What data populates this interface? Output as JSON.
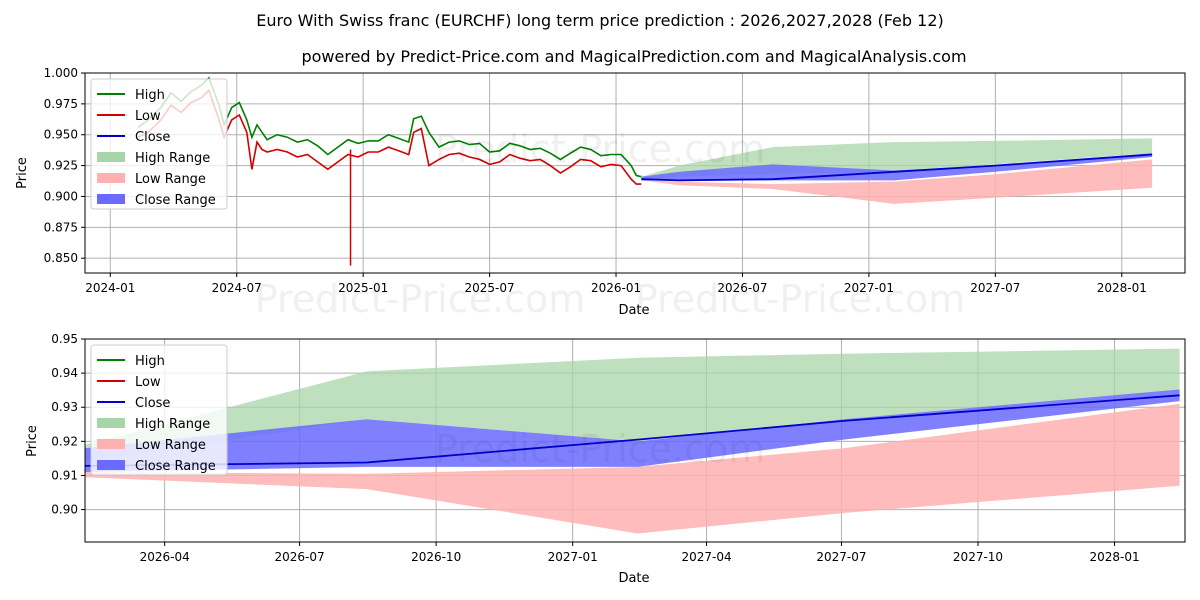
{
  "page": {
    "title": "Euro With Swiss franc (EURCHF) long term price prediction : 2026,2027,2028 (Feb 12)",
    "subtitle": "powered by Predict-Price.com and MagicalPrediction.com and MagicalAnalysis.com",
    "watermark": "Predict-Price.com"
  },
  "colors": {
    "high": "#008000",
    "low": "#d40000",
    "close": "#0000cc",
    "high_range": "#a8d5a8",
    "low_range": "#ffb0b0",
    "close_range": "#6a6aff",
    "grid": "#b0b0b0"
  },
  "chart_data": [
    {
      "type": "line",
      "title": "Euro With Swiss franc (EURCHF) long term price prediction : 2026,2027,2028 (Feb 12)",
      "xlabel": "Date",
      "ylabel": "Price",
      "xlim": [
        2023.9,
        2028.25
      ],
      "ylim": [
        0.838,
        1.0
      ],
      "xticks": [
        {
          "v": 2024.0,
          "label": "2024-01"
        },
        {
          "v": 2024.5,
          "label": "2024-07"
        },
        {
          "v": 2025.0,
          "label": "2025-01"
        },
        {
          "v": 2025.5,
          "label": "2025-07"
        },
        {
          "v": 2026.0,
          "label": "2026-01"
        },
        {
          "v": 2026.5,
          "label": "2026-07"
        },
        {
          "v": 2027.0,
          "label": "2027-01"
        },
        {
          "v": 2027.5,
          "label": "2027-07"
        },
        {
          "v": 2028.0,
          "label": "2028-01"
        }
      ],
      "yticks": [
        {
          "v": 0.85,
          "label": "0.850"
        },
        {
          "v": 0.875,
          "label": "0.875"
        },
        {
          "v": 0.9,
          "label": "0.900"
        },
        {
          "v": 0.925,
          "label": "0.925"
        },
        {
          "v": 0.95,
          "label": "0.950"
        },
        {
          "v": 0.975,
          "label": "0.975"
        },
        {
          "v": 1.0,
          "label": "1.000"
        }
      ],
      "legend": {
        "position": "upper-left",
        "entries": [
          "High",
          "Low",
          "Close",
          "High Range",
          "Low Range",
          "Close Range"
        ]
      },
      "history": {
        "x": [
          2024.11,
          2024.15,
          2024.2,
          2024.24,
          2024.28,
          2024.32,
          2024.36,
          2024.39,
          2024.43,
          2024.45,
          2024.48,
          2024.51,
          2024.54,
          2024.56,
          2024.58,
          2024.6,
          2024.62,
          2024.66,
          2024.7,
          2024.74,
          2024.78,
          2024.82,
          2024.86,
          2024.9,
          2024.94,
          2024.98,
          2025.02,
          2025.06,
          2025.1,
          2025.14,
          2025.18,
          2025.2,
          2025.23,
          2025.26,
          2025.3,
          2025.34,
          2025.38,
          2025.42,
          2025.46,
          2025.5,
          2025.54,
          2025.58,
          2025.62,
          2025.66,
          2025.7,
          2025.74,
          2025.78,
          2025.82,
          2025.86,
          2025.9,
          2025.94,
          2025.98,
          2026.02,
          2026.06,
          2026.08,
          2026.1
        ],
        "high": [
          0.956,
          0.962,
          0.972,
          0.984,
          0.977,
          0.985,
          0.99,
          0.996,
          0.974,
          0.958,
          0.972,
          0.976,
          0.962,
          0.948,
          0.958,
          0.952,
          0.946,
          0.95,
          0.948,
          0.944,
          0.946,
          0.941,
          0.934,
          0.94,
          0.946,
          0.943,
          0.945,
          0.945,
          0.95,
          0.947,
          0.944,
          0.963,
          0.965,
          0.952,
          0.94,
          0.944,
          0.945,
          0.942,
          0.943,
          0.936,
          0.937,
          0.943,
          0.941,
          0.938,
          0.939,
          0.935,
          0.93,
          0.935,
          0.94,
          0.938,
          0.933,
          0.934,
          0.934,
          0.925,
          0.917,
          0.916
        ],
        "low": [
          0.948,
          0.952,
          0.962,
          0.974,
          0.968,
          0.976,
          0.98,
          0.986,
          0.962,
          0.948,
          0.962,
          0.966,
          0.952,
          0.922,
          0.944,
          0.938,
          0.936,
          0.938,
          0.936,
          0.932,
          0.934,
          0.928,
          0.922,
          0.928,
          0.934,
          0.932,
          0.936,
          0.936,
          0.94,
          0.937,
          0.934,
          0.952,
          0.955,
          0.925,
          0.93,
          0.934,
          0.935,
          0.932,
          0.93,
          0.926,
          0.928,
          0.934,
          0.931,
          0.929,
          0.93,
          0.925,
          0.919,
          0.924,
          0.93,
          0.929,
          0.924,
          0.926,
          0.925,
          0.914,
          0.91,
          0.91
        ],
        "spike": {
          "x": 2024.95,
          "low": 0.844
        }
      },
      "forecast": {
        "x": [
          2026.1,
          2026.25,
          2026.62,
          2027.1,
          2027.5,
          2028.12
        ],
        "high_range": {
          "upper": [
            0.916,
            0.925,
            0.94,
            0.944,
            0.945,
            0.947
          ],
          "lower": [
            0.913,
            0.916,
            0.918,
            0.92,
            0.926,
            0.935
          ]
        },
        "low_range": {
          "upper": [
            0.913,
            0.912,
            0.91,
            0.912,
            0.918,
            0.93
          ],
          "lower": [
            0.913,
            0.909,
            0.906,
            0.894,
            0.899,
            0.907
          ]
        },
        "close_range": {
          "upper": [
            0.916,
            0.92,
            0.926,
            0.921,
            0.925,
            0.935
          ],
          "lower": [
            0.913,
            0.913,
            0.913,
            0.913,
            0.92,
            0.932
          ]
        },
        "close": [
          0.914,
          0.913,
          0.914,
          0.92,
          0.925,
          0.934
        ]
      }
    },
    {
      "type": "line",
      "xlabel": "Date",
      "ylabel": "Price",
      "xlim": [
        2026.1,
        2028.13
      ],
      "ylim": [
        0.8905,
        0.95
      ],
      "xticks": [
        {
          "v": 2026.247,
          "label": "2026-04"
        },
        {
          "v": 2026.496,
          "label": "2026-07"
        },
        {
          "v": 2026.748,
          "label": "2026-10"
        },
        {
          "v": 2027.0,
          "label": "2027-01"
        },
        {
          "v": 2027.247,
          "label": "2027-04"
        },
        {
          "v": 2027.496,
          "label": "2027-07"
        },
        {
          "v": 2027.748,
          "label": "2027-10"
        },
        {
          "v": 2028.0,
          "label": "2028-01"
        }
      ],
      "yticks": [
        {
          "v": 0.9,
          "label": "0.90"
        },
        {
          "v": 0.91,
          "label": "0.91"
        },
        {
          "v": 0.92,
          "label": "0.92"
        },
        {
          "v": 0.93,
          "label": "0.93"
        },
        {
          "v": 0.94,
          "label": "0.94"
        },
        {
          "v": 0.95,
          "label": "0.95"
        }
      ],
      "legend": {
        "position": "upper-left",
        "entries": [
          "High",
          "Low",
          "Close",
          "High Range",
          "Low Range",
          "Close Range"
        ]
      },
      "forecast": {
        "x": [
          2026.1,
          2026.62,
          2027.12,
          2027.5,
          2028.12
        ],
        "high_range": {
          "upper": [
            0.919,
            0.9405,
            0.9445,
            0.9457,
            0.9472
          ],
          "lower": [
            0.914,
            0.9265,
            0.92,
            0.9265,
            0.935
          ]
        },
        "low_range": {
          "upper": [
            0.911,
            0.9105,
            0.9125,
            0.918,
            0.931
          ],
          "lower": [
            0.9095,
            0.906,
            0.893,
            0.899,
            0.907
          ]
        },
        "close_range": {
          "upper": [
            0.918,
            0.9265,
            0.92,
            0.9265,
            0.9352
          ],
          "lower": [
            0.911,
            0.9125,
            0.9125,
            0.9205,
            0.9318
          ]
        },
        "close": [
          0.9128,
          0.9138,
          0.9205,
          0.926,
          0.9335
        ]
      }
    }
  ]
}
